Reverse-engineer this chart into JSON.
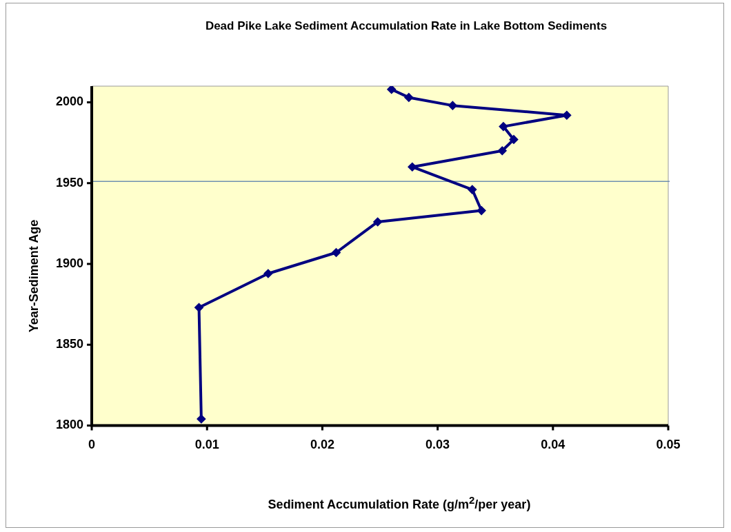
{
  "chart_data": {
    "type": "line",
    "title": "Dead Pike Lake Sediment Accumulation Rate in Lake Bottom Sediments",
    "xlabel": "Sediment Accumulation Rate (g/m$^{2}$/per year)",
    "ylabel": "Year-Sediment Age",
    "series": [
      {
        "color": "#000080",
        "x": [
          0.026,
          0.0275,
          0.0313,
          0.0412,
          0.0357,
          0.0366,
          0.0356,
          0.0278,
          0.033,
          0.0338,
          0.0248,
          0.0212,
          0.0153,
          0.0093,
          0.0095
        ],
        "values": [
          2008,
          2003,
          1998,
          1992,
          1985,
          1977,
          1970,
          1960,
          1946,
          1933,
          1926,
          1907,
          1894,
          1873,
          1804
        ]
      }
    ],
    "xlim": [
      0,
      0.05
    ],
    "xticks": [
      0,
      0.01,
      0.02,
      0.03,
      0.04,
      0.05
    ],
    "ylim": [
      1800,
      2010
    ],
    "yticks": [
      1800,
      1850,
      1900,
      1950,
      2000
    ],
    "ref_lines": [
      {
        "axis": "y",
        "value": 1951,
        "color": "#6f8fb0"
      }
    ],
    "marker": "diamond",
    "line_style": "solid",
    "grid": false,
    "legend": false
  }
}
